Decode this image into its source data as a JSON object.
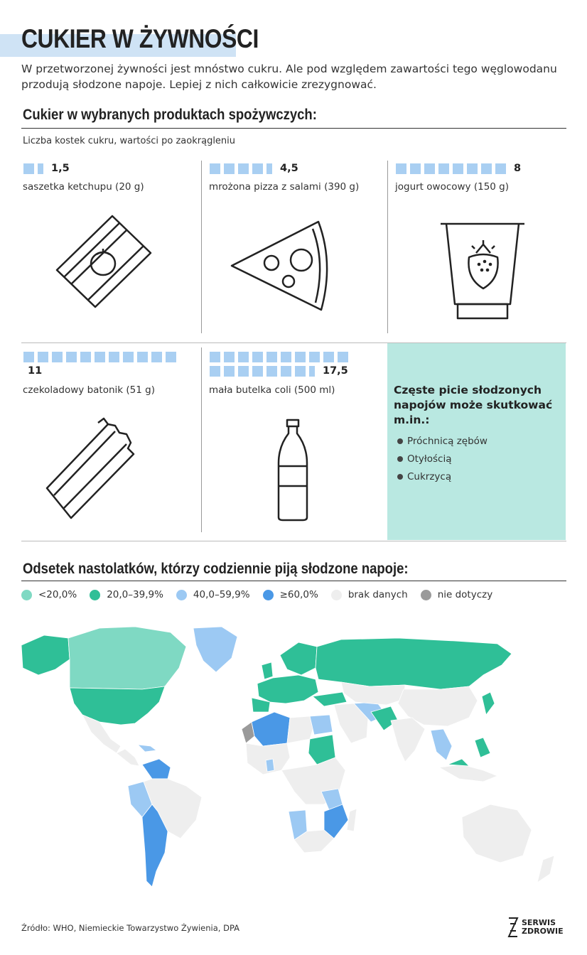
{
  "header": {
    "title": "CUKIER W ŻYWNOŚCI",
    "lead": "W przetworzonej żywności jest mnóstwo cukru. Ale pod względem zawartości tego węglowodanu przodują słodzone napoje. Lepiej z nich całkowicie zrezygnować."
  },
  "products_section": {
    "title": "Cukier w wybranych produktach spożywczych:",
    "subtitle": "Liczba kostek cukru, wartości po zaokrągleniu",
    "items": [
      {
        "value": "1,5",
        "cubes": 1.5,
        "label": "saszetka ketchupu (20 g)",
        "icon": "ketchup-sachet-icon"
      },
      {
        "value": "4,5",
        "cubes": 4.5,
        "label": "mrożona pizza z salami (390 g)",
        "icon": "pizza-slice-icon"
      },
      {
        "value": "8",
        "cubes": 8,
        "label": "jogurt owocowy (150 g)",
        "icon": "yogurt-cup-icon"
      },
      {
        "value": "11",
        "cubes": 11,
        "label": "czekoladowy batonik (51 g)",
        "icon": "chocolate-bar-icon"
      },
      {
        "value": "17,5",
        "cubes": 17.5,
        "label": "mała butelka coli (500 ml)",
        "icon": "cola-bottle-icon"
      }
    ],
    "cube_color": "#a9cff2"
  },
  "info_box": {
    "title": "Częste picie słodzonych napojów może skutkować m.in.:",
    "items": [
      "Próchnicą zębów",
      "Otyłością",
      "Cukrzycą"
    ],
    "background": "#b9e8e1"
  },
  "map_section": {
    "title": "Odsetek nastolatków, którzy codziennie piją słodzone napoje:",
    "legend": [
      {
        "label": "<20,0%",
        "color": "#7fd9c3"
      },
      {
        "label": "20,0–39,9%",
        "color": "#2fbf97"
      },
      {
        "label": "40,0–59,9%",
        "color": "#9cc9f3"
      },
      {
        "label": "≥60,0%",
        "color": "#4a98e6"
      },
      {
        "label": "brak danych",
        "color": "#eeeeee"
      },
      {
        "label": "nie dotyczy",
        "color": "#9a9a9a"
      }
    ]
  },
  "footer": {
    "source": "Źródło: WHO, Niemieckie Towarzystwo Żywienia, DPA",
    "logo_line1": "SERWIS",
    "logo_line2": "ZDROWIE"
  }
}
